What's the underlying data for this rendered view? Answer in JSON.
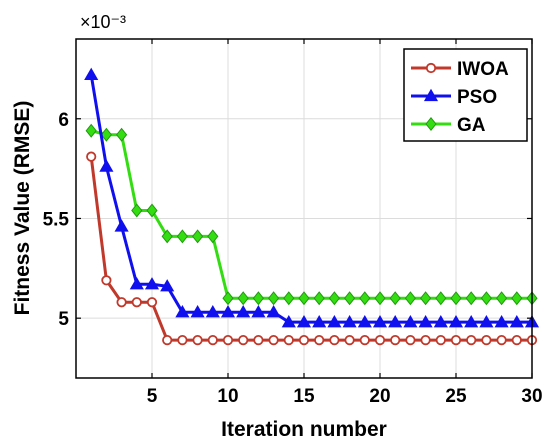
{
  "chart_data": {
    "type": "line",
    "xlabel": "Iteration number",
    "ylabel": "Fitness Value (RMSE)",
    "y_exponent_label": "×10⁻³",
    "xlim": [
      0,
      30
    ],
    "ylim": [
      4.7,
      6.4
    ],
    "xticks": [
      "5",
      "10",
      "15",
      "20",
      "25",
      "30"
    ],
    "yticks": [
      "5",
      "5.5",
      "6"
    ],
    "grid": true,
    "legend_position": "top-right",
    "x": [
      1,
      2,
      3,
      4,
      5,
      6,
      7,
      8,
      9,
      10,
      11,
      12,
      13,
      14,
      15,
      16,
      17,
      18,
      19,
      20,
      21,
      22,
      23,
      24,
      25,
      26,
      27,
      28,
      29,
      30
    ],
    "series": [
      {
        "name": "IWOA",
        "color": "#c0392b",
        "marker": "circle",
        "values": [
          5.81,
          5.19,
          5.08,
          5.08,
          5.08,
          4.89,
          4.89,
          4.89,
          4.89,
          4.89,
          4.89,
          4.89,
          4.89,
          4.89,
          4.89,
          4.89,
          4.89,
          4.89,
          4.89,
          4.89,
          4.89,
          4.89,
          4.89,
          4.89,
          4.89,
          4.89,
          4.89,
          4.89,
          4.89,
          4.89
        ]
      },
      {
        "name": "PSO",
        "color": "#1010ee",
        "marker": "triangle",
        "values": [
          6.22,
          5.76,
          5.46,
          5.17,
          5.17,
          5.16,
          5.03,
          5.03,
          5.03,
          5.03,
          5.03,
          5.03,
          5.03,
          4.98,
          4.98,
          4.98,
          4.98,
          4.98,
          4.98,
          4.98,
          4.98,
          4.98,
          4.98,
          4.98,
          4.98,
          4.98,
          4.98,
          4.98,
          4.98,
          4.98
        ]
      },
      {
        "name": "GA",
        "color": "#33dd11",
        "marker": "diamond",
        "values": [
          5.94,
          5.92,
          5.92,
          5.54,
          5.54,
          5.41,
          5.41,
          5.41,
          5.41,
          5.1,
          5.1,
          5.1,
          5.1,
          5.1,
          5.1,
          5.1,
          5.1,
          5.1,
          5.1,
          5.1,
          5.1,
          5.1,
          5.1,
          5.1,
          5.1,
          5.1,
          5.1,
          5.1,
          5.1,
          5.1
        ]
      }
    ]
  }
}
